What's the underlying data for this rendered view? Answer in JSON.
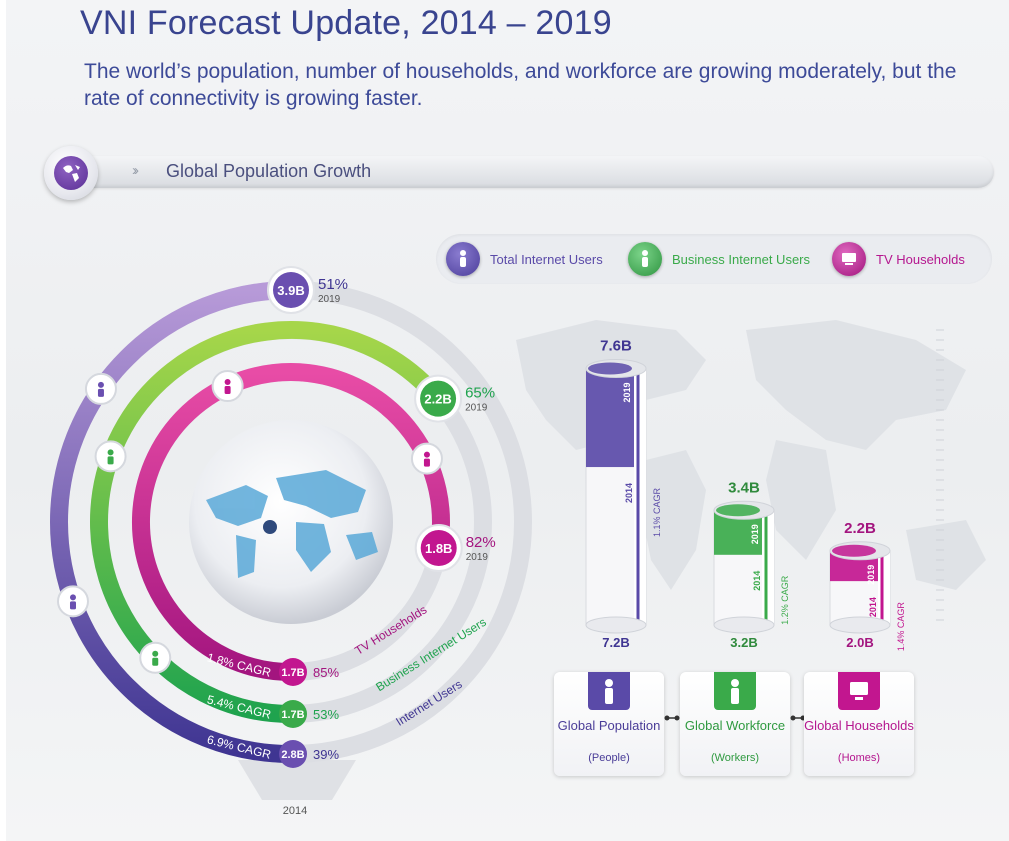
{
  "header": {
    "title": "VNI Forecast Update, 2014 – 2019",
    "subtitle": "The world’s population, number of households, and workforce are growing moderately, but the rate of connectivity is growing faster."
  },
  "section": {
    "label": "Global Population Growth",
    "icon": "globe-icon"
  },
  "legend": [
    {
      "label": "Total Internet Users",
      "color": "#5a4aa8",
      "icon": "person-device-icon"
    },
    {
      "label": "Business Internet Users",
      "color": "#3aaa4a",
      "icon": "businessperson-icon"
    },
    {
      "label": "TV Households",
      "color": "#b5178f",
      "icon": "tv-household-icon"
    }
  ],
  "rings_labels": {
    "year_2014": "2014",
    "year_2019": "2019"
  },
  "colors": {
    "internet_users": "#6a4fb0",
    "business": "#3aaa4a",
    "tv": "#c2168f",
    "title": "#39448f"
  },
  "chart_data": [
    {
      "type": "radial-bar",
      "series": [
        {
          "name": "Internet Users",
          "value_2014": "2.8B",
          "penetration_2014": "39%",
          "value_2019": "3.9B",
          "penetration_2019": "51%",
          "cagr": "6.9% CAGR"
        },
        {
          "name": "Business Internet Users",
          "value_2014": "1.7B",
          "penetration_2014": "53%",
          "value_2019": "2.2B",
          "penetration_2019": "65%",
          "cagr": "5.4% CAGR"
        },
        {
          "name": "TV Households",
          "value_2014": "1.7B",
          "penetration_2014": "85%",
          "value_2019": "1.8B",
          "penetration_2019": "82%",
          "cagr": "1.8% CAGR"
        }
      ]
    },
    {
      "type": "bar",
      "categories": [
        "Global Population",
        "Global Workforce",
        "Global Households"
      ],
      "units": [
        "(People)",
        "(Workers)",
        "(Homes)"
      ],
      "label_2014": "2014",
      "label_2019": "2019",
      "values_2014": [
        7.2,
        3.2,
        2.0
      ],
      "values_2019": [
        7.6,
        3.4,
        2.2
      ],
      "labels_2014": [
        "7.2B",
        "3.2B",
        "2.0B"
      ],
      "labels_2019": [
        "7.6B",
        "3.4B",
        "2.2B"
      ],
      "cagr": [
        "1.1% CAGR",
        "1.2% CAGR",
        "1.4% CAGR"
      ],
      "colors": [
        "#5a4aa8",
        "#3aaa4a",
        "#c2168f"
      ]
    }
  ]
}
